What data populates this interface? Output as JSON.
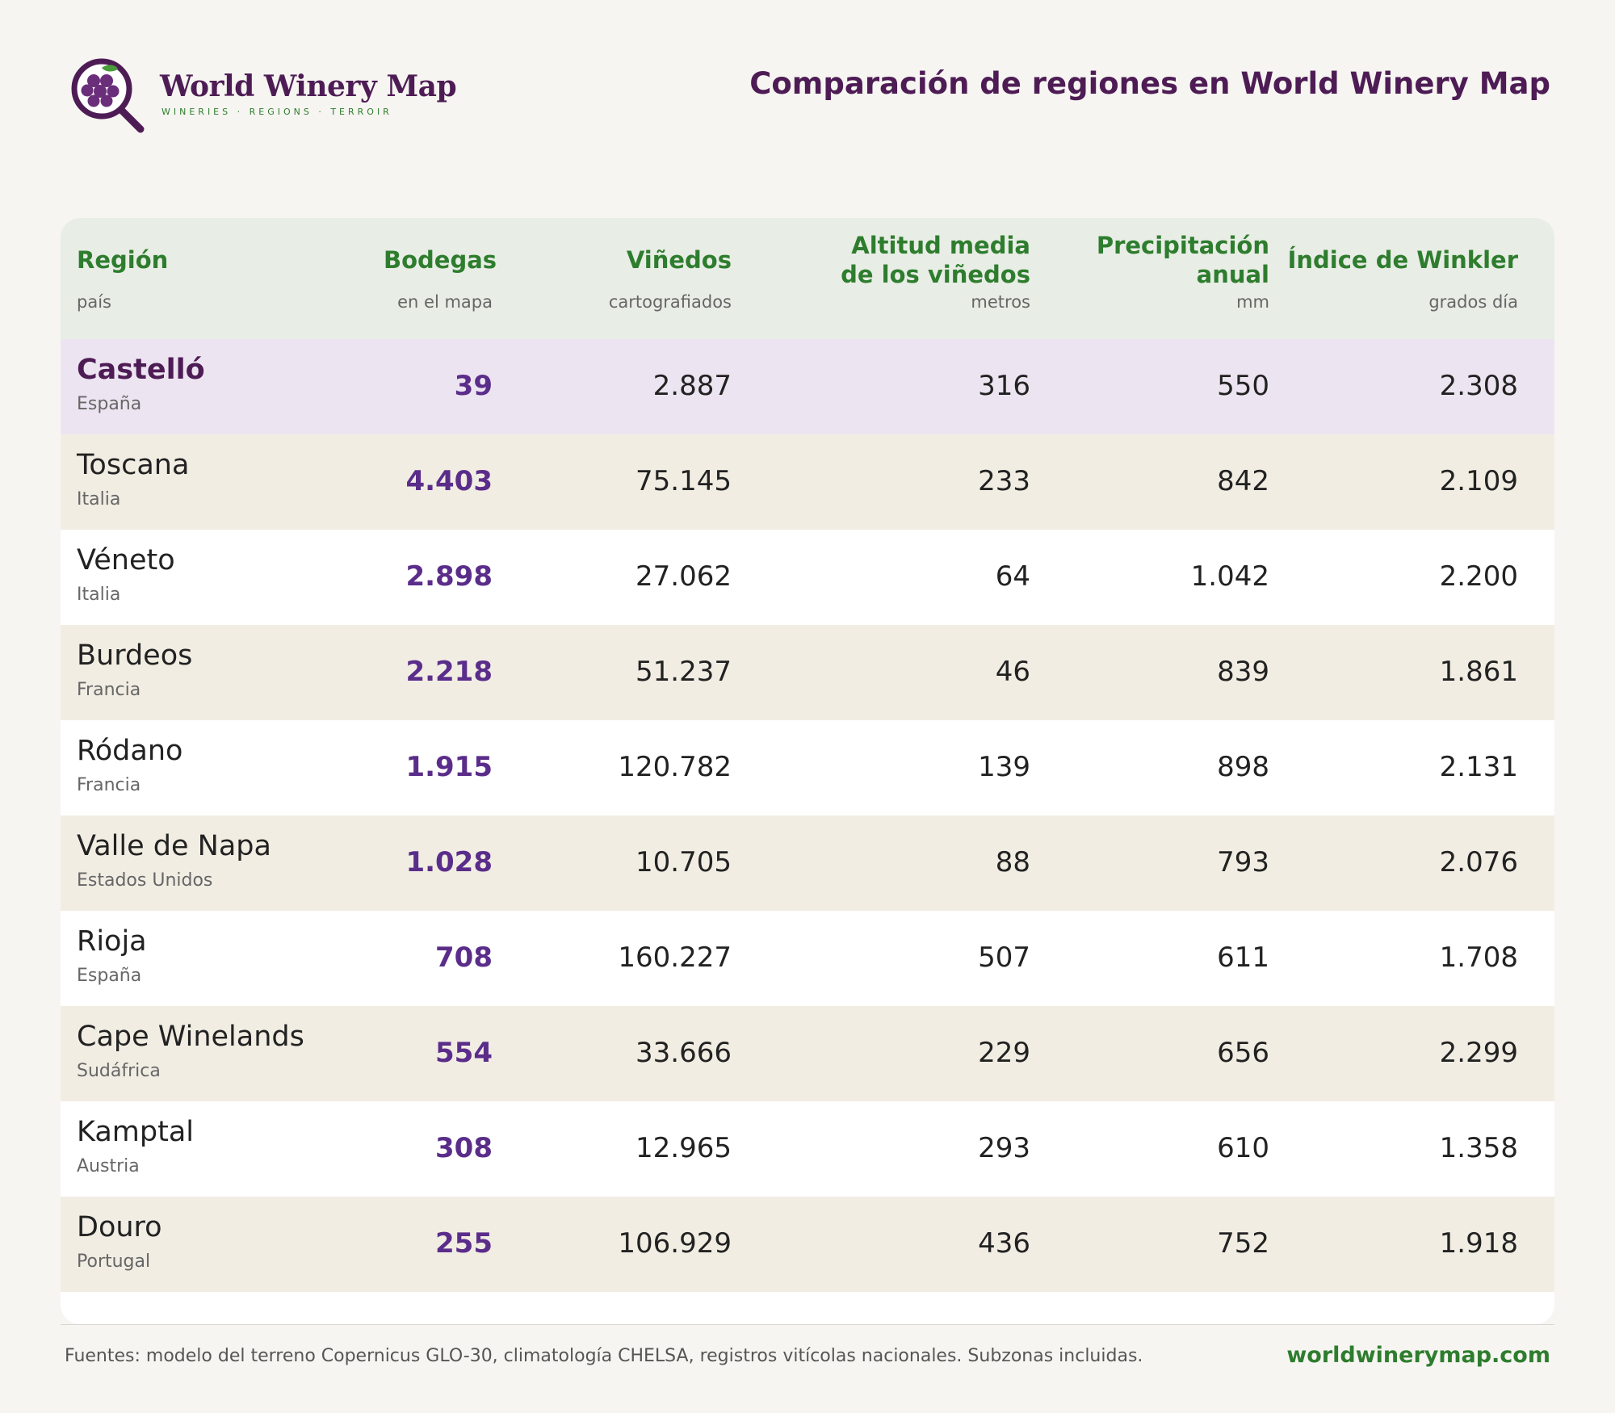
{
  "brand": {
    "name": "World Winery Map",
    "tagline": "WINERIES · REGIONS · TERROIR"
  },
  "title": "Comparación de regiones en World Winery Map",
  "table": {
    "headers": [
      {
        "label": "Región",
        "sub": "país"
      },
      {
        "label": "Bodegas",
        "sub": "en el mapa"
      },
      {
        "label": "Viñedos",
        "sub": "cartografiados"
      },
      {
        "label": "Altitud media\nde los viñedos",
        "sub": "metros"
      },
      {
        "label": "Precipitación\nanual",
        "sub": "mm"
      },
      {
        "label": "Índice de Winkler",
        "sub": "grados día"
      }
    ],
    "rows": [
      {
        "region": "Castelló",
        "country": "España",
        "bodegas": "39",
        "vinedos": "2.887",
        "altitud": "316",
        "precipitacion": "550",
        "winkler": "2.308",
        "highlight": true
      },
      {
        "region": "Toscana",
        "country": "Italia",
        "bodegas": "4.403",
        "vinedos": "75.145",
        "altitud": "233",
        "precipitacion": "842",
        "winkler": "2.109"
      },
      {
        "region": "Véneto",
        "country": "Italia",
        "bodegas": "2.898",
        "vinedos": "27.062",
        "altitud": "64",
        "precipitacion": "1.042",
        "winkler": "2.200"
      },
      {
        "region": "Burdeos",
        "country": "Francia",
        "bodegas": "2.218",
        "vinedos": "51.237",
        "altitud": "46",
        "precipitacion": "839",
        "winkler": "1.861"
      },
      {
        "region": "Ródano",
        "country": "Francia",
        "bodegas": "1.915",
        "vinedos": "120.782",
        "altitud": "139",
        "precipitacion": "898",
        "winkler": "2.131"
      },
      {
        "region": "Valle de Napa",
        "country": "Estados Unidos",
        "bodegas": "1.028",
        "vinedos": "10.705",
        "altitud": "88",
        "precipitacion": "793",
        "winkler": "2.076"
      },
      {
        "region": "Rioja",
        "country": "España",
        "bodegas": "708",
        "vinedos": "160.227",
        "altitud": "507",
        "precipitacion": "611",
        "winkler": "1.708"
      },
      {
        "region": "Cape Winelands",
        "country": "Sudáfrica",
        "bodegas": "554",
        "vinedos": "33.666",
        "altitud": "229",
        "precipitacion": "656",
        "winkler": "2.299"
      },
      {
        "region": "Kamptal",
        "country": "Austria",
        "bodegas": "308",
        "vinedos": "12.965",
        "altitud": "293",
        "precipitacion": "610",
        "winkler": "1.358"
      },
      {
        "region": "Douro",
        "country": "Portugal",
        "bodegas": "255",
        "vinedos": "106.929",
        "altitud": "436",
        "precipitacion": "752",
        "winkler": "1.918"
      }
    ]
  },
  "footer": {
    "sources": "Fuentes: modelo del terreno Copernicus GLO-30, climatología CHELSA, registros vitícolas nacionales. Subzonas incluidas.",
    "site": "worldwinerymap.com"
  },
  "colors": {
    "brand_purple": "#4e1c55",
    "accent_green": "#2e7d2e",
    "bodegas_purple": "#5b2d8a",
    "header_bg": "#e8ede5",
    "highlight_bg": "#ede4f1",
    "alt_row_bg": "#f1ede3"
  },
  "icons": {
    "logo": "grape-magnifier-icon"
  }
}
